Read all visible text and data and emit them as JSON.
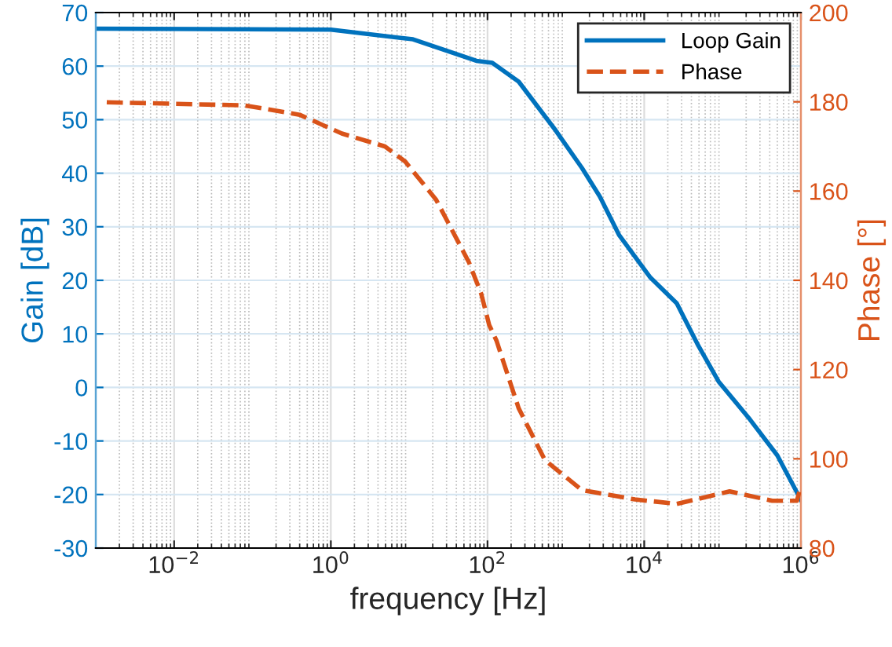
{
  "chart_data": {
    "type": "line",
    "xlabel": "frequency [Hz]",
    "ylabel": "Gain [dB]",
    "y2label": "Phase [°]",
    "log": "x",
    "grid": true,
    "legend": "top right",
    "marker": "none",
    "xlim": [
      0.001,
      1000000
    ],
    "xticks": [
      {
        "value": 0.01,
        "label": "10$^{−2}$"
      },
      {
        "value": 1,
        "label": "10$^{0}$"
      },
      {
        "value": 100,
        "label": "10$^{2}$"
      },
      {
        "value": 10000,
        "label": "10$^{4}$"
      },
      {
        "value": 1000000,
        "label": "10$^{6}$"
      }
    ],
    "ylim": [
      -30,
      70
    ],
    "yticks": [
      -30,
      -20,
      -10,
      0,
      10,
      20,
      30,
      40,
      50,
      60,
      70
    ],
    "y2lim": [
      80,
      200
    ],
    "y2ticks": [
      80,
      100,
      120,
      140,
      160,
      180,
      200
    ],
    "series": [
      {
        "name": "Loop Gain",
        "color": "#0072bd",
        "line_style": "solid",
        "x": [
          0.001,
          1,
          11.2,
          72,
          115,
          250,
          740,
          1600,
          2700,
          4800,
          12000,
          26000,
          49000,
          89000,
          224000,
          500000,
          1000000
        ],
        "values": [
          67,
          66.8,
          65,
          61,
          60.6,
          57.1,
          48,
          41,
          35.7,
          28.4,
          20.5,
          15.7,
          7.8,
          1.1,
          -6,
          -12.7,
          -21
        ]
      },
      {
        "name": "Phase",
        "color": "#d95319",
        "line_style": "dashed",
        "axis": "y2",
        "x": [
          0.00138,
          0.079,
          0.4,
          1.38,
          4.9,
          8.9,
          22,
          58,
          83,
          105,
          130,
          250,
          540,
          1600,
          7600,
          26000,
          123000,
          430000,
          890000,
          1000000
        ],
        "values": [
          179.9,
          179.2,
          177.1,
          172.9,
          170,
          166.6,
          158.1,
          144,
          137,
          130,
          126.5,
          111.3,
          99.7,
          93,
          90.9,
          89.9,
          92.7,
          90.6,
          90.6,
          94
        ]
      }
    ]
  }
}
